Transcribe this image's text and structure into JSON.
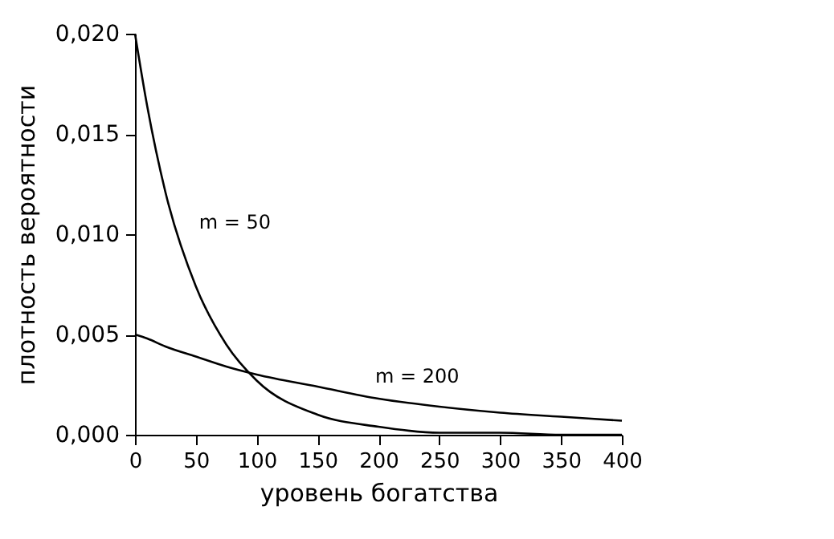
{
  "chart_data": {
    "type": "line",
    "xlabel": "уровень богатства",
    "ylabel": "плотность вероятности",
    "x": [
      0,
      10,
      25,
      50,
      75,
      100,
      150,
      200,
      250,
      300,
      350,
      400
    ],
    "series": [
      {
        "name": "m = 50",
        "color": "#000000",
        "values": [
          0.02,
          0.0164,
          0.0121,
          0.0074,
          0.0045,
          0.0027,
          0.001,
          0.0004,
          0.0001,
          0.0001,
          0,
          0
        ]
      },
      {
        "name": "m = 200",
        "color": "#000000",
        "values": [
          0.005,
          0.0048,
          0.0044,
          0.0039,
          0.0034,
          0.003,
          0.0024,
          0.0018,
          0.0014,
          0.0011,
          0.0009,
          0.0007
        ]
      }
    ],
    "xlim": [
      0,
      400
    ],
    "xticks": [
      0,
      50,
      100,
      150,
      200,
      250,
      300,
      350,
      400
    ],
    "ylim": [
      0,
      0.02
    ],
    "yticks": [
      {
        "value": 0,
        "label": "0,000"
      },
      {
        "value": 0.005,
        "label": "0,005"
      },
      {
        "value": 0.01,
        "label": "0,010"
      },
      {
        "value": 0.015,
        "label": "0,015"
      },
      {
        "value": 0.02,
        "label": "0,020"
      }
    ],
    "grid": false,
    "legend": false,
    "marker": "none",
    "line_style": "solid"
  }
}
